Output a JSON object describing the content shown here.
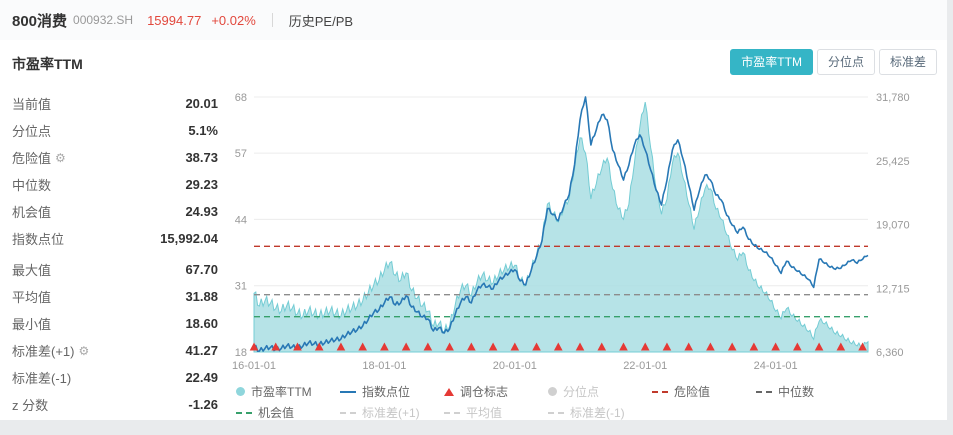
{
  "header": {
    "name": "800消费",
    "code": "000932.SH",
    "price": "15994.77",
    "change": "+0.02%",
    "nav_link": "历史PE/PB"
  },
  "panel": {
    "title": "市盈率TTM",
    "tabs": [
      {
        "label": "市盈率TTM",
        "active": true
      },
      {
        "label": "分位点",
        "active": false
      },
      {
        "label": "标准差",
        "active": false
      }
    ],
    "stats_primary": [
      {
        "label": "当前值",
        "value": "20.01",
        "gear": false
      },
      {
        "label": "分位点",
        "value": "5.1%",
        "gear": false
      },
      {
        "label": "危险值",
        "value": "38.73",
        "gear": true
      },
      {
        "label": "中位数",
        "value": "29.23",
        "gear": false
      },
      {
        "label": "机会值",
        "value": "24.93",
        "gear": false
      },
      {
        "label": "指数点位",
        "value": "15,992.04",
        "gear": false
      }
    ],
    "stats_secondary": [
      {
        "label": "最大值",
        "value": "67.70",
        "gear": false
      },
      {
        "label": "平均值",
        "value": "31.88",
        "gear": false
      },
      {
        "label": "最小值",
        "value": "18.60",
        "gear": false
      },
      {
        "label": "标准差(+1)",
        "value": "41.27",
        "gear": true
      },
      {
        "label": "标准差(-1)",
        "value": "22.49",
        "gear": false
      },
      {
        "label": "z 分数",
        "value": "-1.26",
        "gear": false
      }
    ]
  },
  "chart_data": {
    "type": "area+line",
    "x_start_month": "2016-01",
    "x_ticks": [
      {
        "month": 0,
        "label": "16-01-01"
      },
      {
        "month": 24,
        "label": "18-01-01"
      },
      {
        "month": 48,
        "label": "20-01-01"
      },
      {
        "month": 72,
        "label": "22-01-01"
      },
      {
        "month": 96,
        "label": "24-01-01"
      }
    ],
    "left_axis": {
      "min": 18,
      "max": 68,
      "ticks": [
        68,
        57,
        44,
        31,
        18
      ]
    },
    "right_axis": {
      "min": 6360,
      "max": 31780,
      "ticks": [
        {
          "value": 31780,
          "label": "31,780"
        },
        {
          "value": 25425,
          "label": "25,425"
        },
        {
          "value": 19070,
          "label": "19,070"
        },
        {
          "value": 12715,
          "label": "12,715"
        },
        {
          "value": 6360,
          "label": "6,360"
        }
      ]
    },
    "series": [
      {
        "name": "市盈率TTM",
        "type": "area",
        "axis": "left",
        "color": "#74ccd4",
        "fill": "#a9dee3",
        "values": [
          29.5,
          27,
          28,
          27.5,
          26.5,
          26,
          27,
          26.5,
          25.5,
          25,
          26,
          25.5,
          25,
          25.5,
          26,
          25.5,
          25,
          26,
          26.5,
          27,
          28,
          29.5,
          31,
          32,
          34,
          35.5,
          33,
          32,
          33.5,
          30,
          28.5,
          27,
          26,
          23,
          23.5,
          22,
          23,
          27,
          30,
          31,
          29,
          31.5,
          33,
          32,
          31.5,
          33,
          34,
          34.5,
          35,
          32,
          31,
          34,
          37,
          40,
          47,
          45,
          43.5,
          46,
          48,
          54,
          60,
          57,
          48,
          51,
          54,
          56,
          50,
          46,
          44,
          47,
          55,
          62,
          67,
          58,
          50,
          45,
          48,
          55,
          57,
          52,
          47,
          42,
          46,
          50,
          50,
          46,
          44,
          41,
          38,
          36,
          37.5,
          34,
          32,
          30.5,
          29.5,
          28,
          26,
          24.5,
          26.5,
          25,
          24,
          23,
          22,
          20.5,
          24,
          23.5,
          22.5,
          21.5,
          21,
          20.2,
          19.6,
          19.2,
          18.8,
          20
        ]
      },
      {
        "name": "指数点位",
        "type": "line",
        "axis": "right",
        "color": "#2878b5",
        "values": [
          6900,
          6450,
          6700,
          6800,
          6600,
          6700,
          6950,
          6850,
          6750,
          6950,
          7250,
          7150,
          7100,
          7250,
          7450,
          7550,
          7650,
          8050,
          8350,
          8550,
          8950,
          9550,
          10250,
          10550,
          11250,
          11850,
          11050,
          11250,
          11950,
          10850,
          10350,
          9850,
          9650,
          8450,
          8750,
          8250,
          8650,
          10050,
          11250,
          11850,
          11250,
          12450,
          13050,
          12850,
          12650,
          13450,
          13850,
          14250,
          14550,
          13450,
          13050,
          14450,
          15850,
          17450,
          20650,
          20050,
          19450,
          20850,
          22050,
          25050,
          29500,
          31780,
          27000,
          28500,
          30000,
          29500,
          26500,
          25000,
          23500,
          25000,
          27000,
          28000,
          26500,
          24500,
          22500,
          21000,
          23500,
          26500,
          27500,
          25500,
          23000,
          20500,
          22500,
          24000,
          23500,
          22000,
          21500,
          20000,
          19000,
          18200,
          18800,
          17600,
          17000,
          16600,
          16300,
          15800,
          15000,
          14200,
          15400,
          14800,
          14400,
          14000,
          13600,
          12800,
          15600,
          15200,
          14800,
          14600,
          14700,
          15100,
          15500,
          15200,
          15600,
          15992
        ]
      }
    ],
    "reference_lines": [
      {
        "name": "危险值",
        "value": 38.73,
        "color": "#c0392b"
      },
      {
        "name": "中位数",
        "value": 29.23,
        "color": "#8c8c8c"
      },
      {
        "name": "机会值",
        "value": 24.93,
        "color": "#37a06b"
      }
    ],
    "markers": {
      "name": "调仓标志",
      "color": "#e53935",
      "month_indices": [
        0,
        4,
        8,
        12,
        16,
        20,
        24,
        28,
        32,
        36,
        40,
        44,
        48,
        52,
        56,
        60,
        64,
        68,
        72,
        76,
        80,
        84,
        88,
        92,
        96,
        100,
        104,
        108,
        112
      ]
    }
  },
  "legend": {
    "rows": [
      [
        {
          "label": "市盈率TTM",
          "swatch": "circle",
          "color": "#8fd6dc",
          "enabled": true
        },
        {
          "label": "指数点位",
          "swatch": "line",
          "color": "#2878b5",
          "enabled": true
        },
        {
          "label": "调仓标志",
          "swatch": "triangle",
          "color": "#e53935",
          "enabled": true
        },
        {
          "label": "分位点",
          "swatch": "circle",
          "color": "#d0d0d0",
          "enabled": false
        },
        {
          "label": "危险值",
          "swatch": "dash",
          "color": "#c0392b",
          "enabled": true
        },
        {
          "label": "中位数",
          "swatch": "dash",
          "color": "#666666",
          "enabled": true
        }
      ],
      [
        {
          "label": "机会值",
          "swatch": "dash",
          "color": "#37a06b",
          "enabled": true
        },
        {
          "label": "标准差(+1)",
          "swatch": "dash",
          "color": "#d0d0d0",
          "enabled": false
        },
        {
          "label": "平均值",
          "swatch": "dash",
          "color": "#d0d0d0",
          "enabled": false
        },
        {
          "label": "标准差(-1)",
          "swatch": "dash",
          "color": "#d0d0d0",
          "enabled": false
        }
      ]
    ]
  }
}
